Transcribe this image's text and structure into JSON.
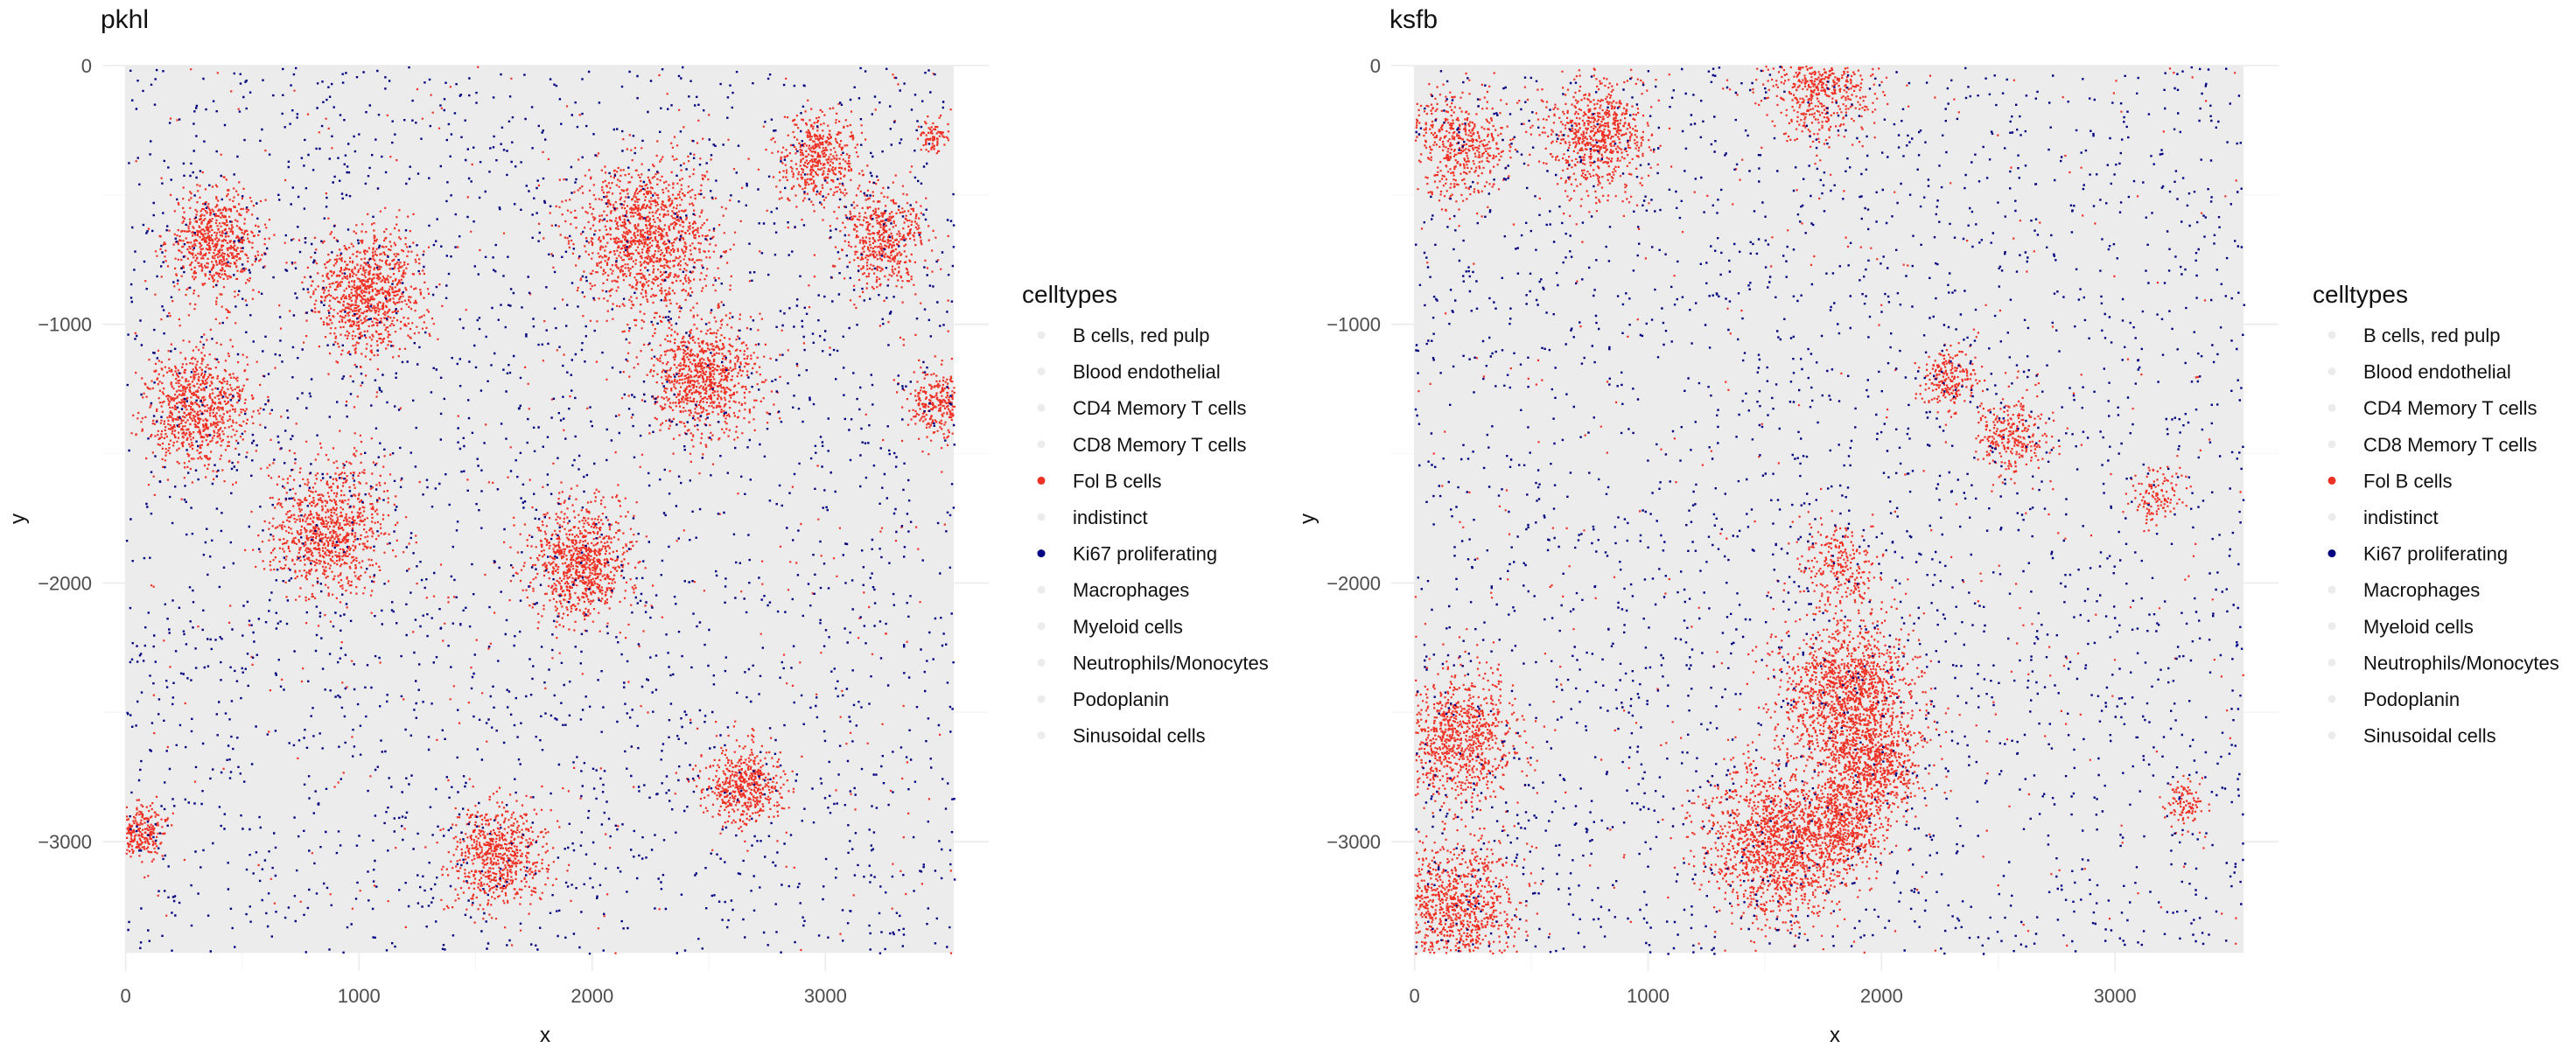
{
  "chart_data": [
    {
      "type": "scatter",
      "title": "pkhl",
      "xlabel": "x",
      "ylabel": "y",
      "xlim": [
        -100,
        3700
      ],
      "ylim": [
        -3500,
        0
      ],
      "x_ticks": [
        0,
        1000,
        2000,
        3000
      ],
      "y_ticks": [
        0,
        -1000,
        -2000,
        -3000
      ],
      "grid": true,
      "legend_placement": "right",
      "extent": {
        "x": [
          0,
          3550
        ],
        "y": [
          -3430,
          0
        ]
      },
      "background_celltype": "B cells, red pulp",
      "ki67_point_count": 2600,
      "fol_b_scatter_count": 420,
      "fol_b_clusters": [
        {
          "x": 380,
          "y": -680,
          "r": 180,
          "n": 650
        },
        {
          "x": 1040,
          "y": -870,
          "r": 220,
          "n": 900
        },
        {
          "x": 300,
          "y": -1320,
          "r": 200,
          "n": 800
        },
        {
          "x": 870,
          "y": -1790,
          "r": 230,
          "n": 900
        },
        {
          "x": 1950,
          "y": -1920,
          "r": 200,
          "n": 850
        },
        {
          "x": 2230,
          "y": -660,
          "r": 270,
          "n": 1200
        },
        {
          "x": 2470,
          "y": -1200,
          "r": 210,
          "n": 850
        },
        {
          "x": 2960,
          "y": -350,
          "r": 150,
          "n": 450
        },
        {
          "x": 3240,
          "y": -670,
          "r": 170,
          "n": 500
        },
        {
          "x": 3480,
          "y": -1300,
          "r": 120,
          "n": 300
        },
        {
          "x": 1600,
          "y": -3050,
          "r": 190,
          "n": 650
        },
        {
          "x": 2650,
          "y": -2780,
          "r": 150,
          "n": 500
        },
        {
          "x": 60,
          "y": -2960,
          "r": 100,
          "n": 250
        },
        {
          "x": 3460,
          "y": -280,
          "r": 60,
          "n": 80
        }
      ]
    },
    {
      "type": "scatter",
      "title": "ksfb",
      "xlabel": "x",
      "ylabel": "y",
      "xlim": [
        -100,
        3700
      ],
      "ylim": [
        -3500,
        0
      ],
      "x_ticks": [
        0,
        1000,
        2000,
        3000
      ],
      "y_ticks": [
        0,
        -1000,
        -2000,
        -3000
      ],
      "grid": true,
      "legend_placement": "right",
      "extent": {
        "x": [
          0,
          3550
        ],
        "y": [
          -3430,
          0
        ]
      },
      "background_celltype": "B cells, red pulp",
      "ki67_point_count": 2600,
      "fol_b_scatter_count": 380,
      "fol_b_clusters": [
        {
          "x": 180,
          "y": -300,
          "r": 200,
          "n": 500
        },
        {
          "x": 780,
          "y": -270,
          "r": 200,
          "n": 700
        },
        {
          "x": 1730,
          "y": -60,
          "r": 210,
          "n": 650
        },
        {
          "x": 2280,
          "y": -1200,
          "r": 110,
          "n": 220
        },
        {
          "x": 2550,
          "y": -1420,
          "r": 140,
          "n": 280
        },
        {
          "x": 1850,
          "y": -2420,
          "r": 260,
          "n": 1300
        },
        {
          "x": 1950,
          "y": -2700,
          "r": 200,
          "n": 700
        },
        {
          "x": 1550,
          "y": -3000,
          "r": 280,
          "n": 1400
        },
        {
          "x": 1820,
          "y": -2930,
          "r": 160,
          "n": 500
        },
        {
          "x": 180,
          "y": -2600,
          "r": 230,
          "n": 900
        },
        {
          "x": 170,
          "y": -3250,
          "r": 240,
          "n": 900
        },
        {
          "x": 1800,
          "y": -1930,
          "r": 150,
          "n": 250
        },
        {
          "x": 3300,
          "y": -2850,
          "r": 80,
          "n": 100
        },
        {
          "x": 3180,
          "y": -1650,
          "r": 100,
          "n": 120
        }
      ]
    }
  ],
  "legend": {
    "title": "celltypes",
    "items": [
      {
        "label": "B cells, red pulp",
        "color": "#ececec"
      },
      {
        "label": "Blood endothelial",
        "color": "#ececec"
      },
      {
        "label": "CD4 Memory T cells",
        "color": "#ececec"
      },
      {
        "label": "CD8 Memory T cells",
        "color": "#ececec"
      },
      {
        "label": "Fol B cells",
        "color": "#ee3124"
      },
      {
        "label": "indistinct",
        "color": "#ececec"
      },
      {
        "label": "Ki67 proliferating",
        "color": "#000080"
      },
      {
        "label": "Macrophages",
        "color": "#ececec"
      },
      {
        "label": "Myeloid cells",
        "color": "#ececec"
      },
      {
        "label": "Neutrophils/Monocytes",
        "color": "#ececec"
      },
      {
        "label": "Podoplanin",
        "color": "#ececec"
      },
      {
        "label": "Sinusoidal cells",
        "color": "#ececec"
      }
    ]
  },
  "colors": {
    "background_cells": "#ececec",
    "fol_b": "#ee3124",
    "ki67": "#000080",
    "grid": "#ebebeb"
  }
}
